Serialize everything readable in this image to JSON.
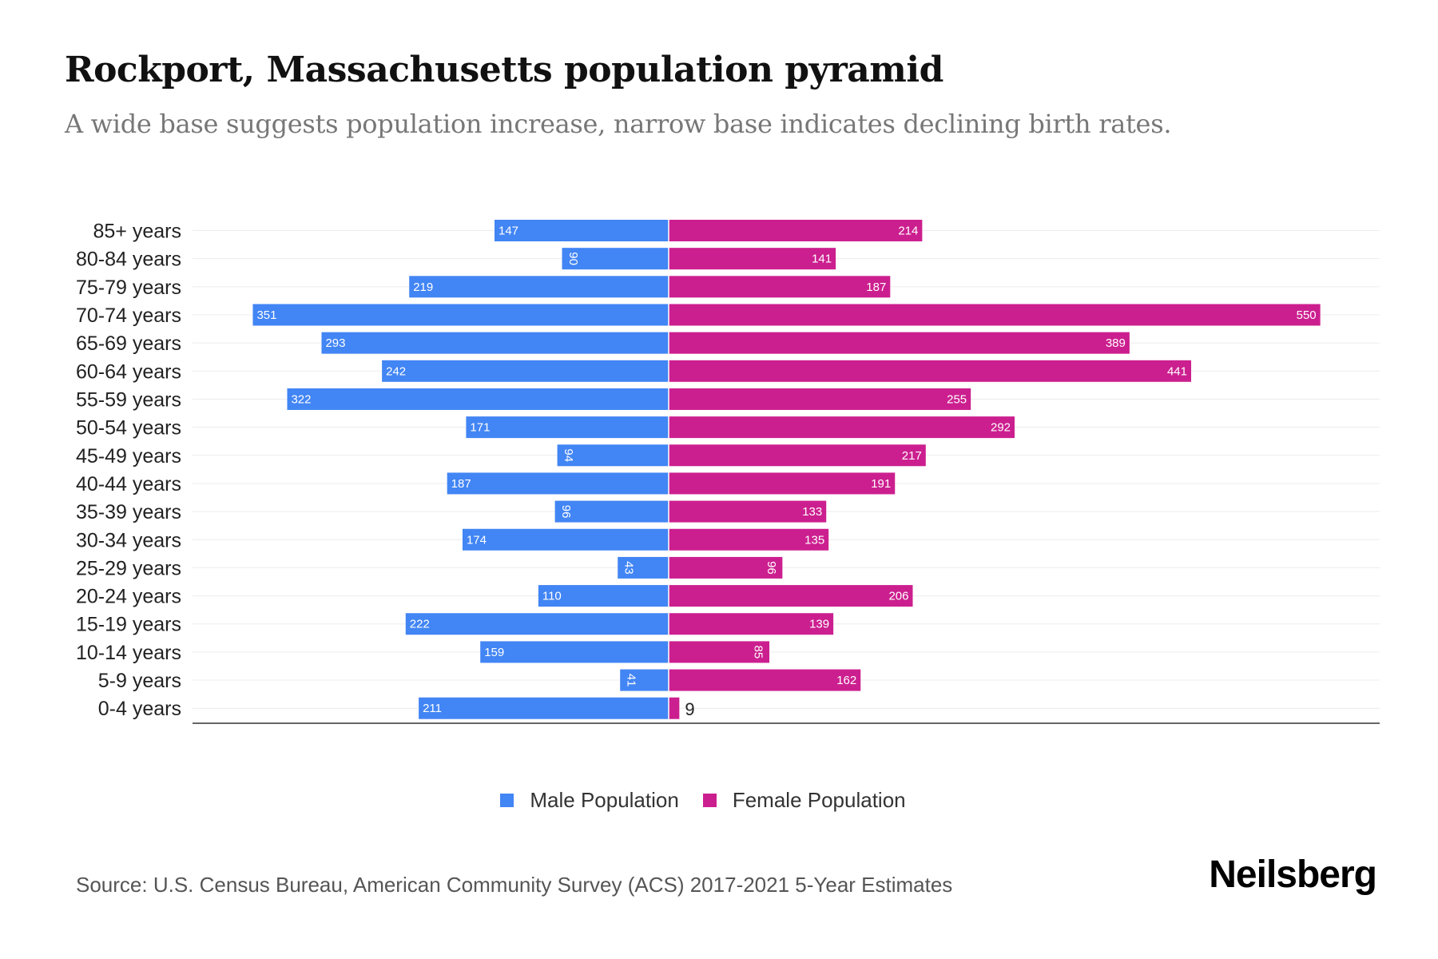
{
  "chart_data": {
    "type": "bar",
    "orientation": "horizontal-pyramid",
    "title": "Rockport, Massachusetts population pyramid",
    "subtitle": "A wide base suggests population increase, narrow base indicates declining birth rates.",
    "categories": [
      "85+ years",
      "80-84 years",
      "75-79 years",
      "70-74 years",
      "65-69 years",
      "60-64 years",
      "55-59 years",
      "50-54 years",
      "45-49 years",
      "40-44 years",
      "35-39 years",
      "30-34 years",
      "25-29 years",
      "20-24 years",
      "15-19 years",
      "10-14 years",
      "5-9 years",
      "0-4 years"
    ],
    "series": [
      {
        "name": "Male Population",
        "color": "#4285f4",
        "values": [
          147,
          90,
          219,
          351,
          293,
          242,
          322,
          171,
          94,
          187,
          96,
          174,
          43,
          110,
          222,
          159,
          41,
          211
        ]
      },
      {
        "name": "Female Population",
        "color": "#cc1f8f",
        "values": [
          214,
          141,
          187,
          550,
          389,
          441,
          255,
          292,
          217,
          191,
          133,
          135,
          96,
          206,
          139,
          85,
          162,
          9
        ]
      }
    ],
    "legend_position": "bottom-center",
    "grid": true
  },
  "source": "Source: U.S. Census Bureau, American Community Survey (ACS) 2017-2021 5-Year Estimates",
  "logo": "Neilsberg"
}
